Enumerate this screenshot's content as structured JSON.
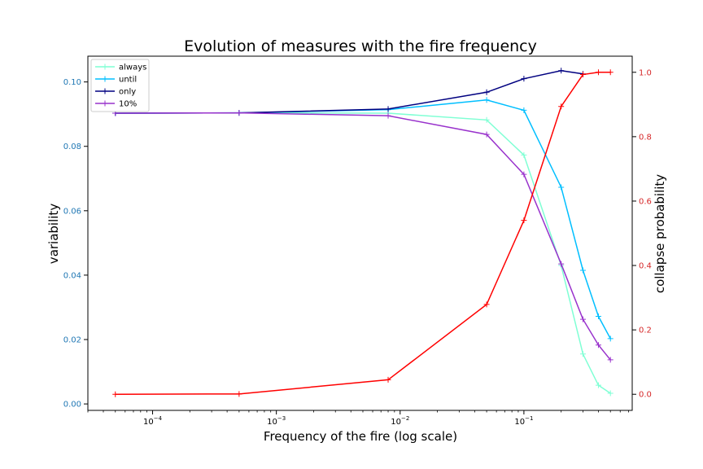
{
  "chart_data": {
    "type": "line",
    "title": "Evolution of measures with the fire frequency",
    "xlabel": "Frequency of the fire (log scale)",
    "ylabel_left": "variability",
    "ylabel_right": "collapse probability",
    "x_scale": "log",
    "xlim": [
      3e-05,
      0.75
    ],
    "ylim_left": [
      -0.002,
      0.108
    ],
    "ylim_right": [
      -0.05,
      1.05
    ],
    "x_ticks": [
      {
        "value": 0.0001,
        "base": "10",
        "exp": "−4"
      },
      {
        "value": 0.001,
        "base": "10",
        "exp": "−3"
      },
      {
        "value": 0.01,
        "base": "10",
        "exp": "−2"
      },
      {
        "value": 0.1,
        "base": "10",
        "exp": "−1"
      }
    ],
    "y_ticks_left": [
      "0.00",
      "0.02",
      "0.04",
      "0.06",
      "0.08",
      "0.10"
    ],
    "y_ticks_right": [
      "0.0",
      "0.2",
      "0.4",
      "0.6",
      "0.8",
      "1.0"
    ],
    "grid": false,
    "legend_position": "top-left",
    "left_tick_color": "#1f77b4",
    "right_tick_color": "#d62728",
    "x": [
      5e-05,
      0.0005,
      0.008,
      0.05,
      0.1,
      0.2,
      0.3,
      0.4,
      0.5
    ],
    "series": [
      {
        "name": "always",
        "axis": "left",
        "color": "#7fffd4",
        "values": [
          0.0903,
          0.0904,
          0.0903,
          0.0882,
          0.0773,
          0.043,
          0.0155,
          0.0058,
          0.0033
        ]
      },
      {
        "name": "until",
        "axis": "left",
        "color": "#00bfff",
        "values": [
          0.0903,
          0.0904,
          0.0914,
          0.0944,
          0.0912,
          0.0673,
          0.0415,
          0.0272,
          0.0203
        ]
      },
      {
        "name": "only",
        "axis": "left",
        "color": "#000080",
        "values": [
          0.0903,
          0.0904,
          0.0916,
          0.0968,
          0.101,
          0.1035,
          0.1025,
          null,
          null
        ]
      },
      {
        "name": "10%",
        "axis": "left",
        "color": "#9932cc",
        "values": [
          0.0903,
          0.0904,
          0.0895,
          0.0837,
          0.0713,
          0.0435,
          0.0263,
          0.0183,
          0.0137
        ]
      },
      {
        "name": "",
        "axis": "right",
        "color": "#ff0000",
        "values": [
          0.0,
          0.001,
          0.045,
          0.279,
          0.54,
          0.894,
          0.993,
          1.0,
          1.0
        ]
      }
    ]
  }
}
